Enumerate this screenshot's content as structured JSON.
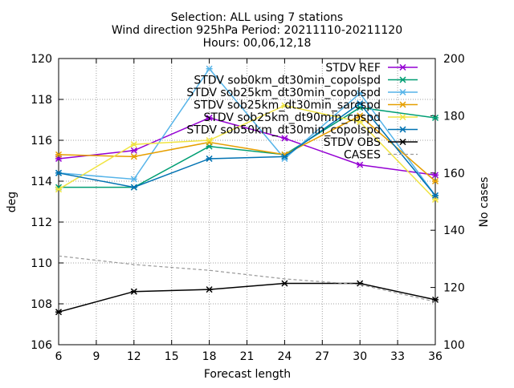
{
  "chart_data": {
    "type": "line",
    "title": [
      "Selection: ALL using      7 stations",
      "Wind direction 925hPa   Period: 20211110-20211120",
      "Hours: 00,06,12,18"
    ],
    "xlabel": "Forecast length",
    "ylabel": "deg",
    "y2label": "No cases",
    "x": [
      6,
      12,
      18,
      24,
      30,
      36
    ],
    "xticks": [
      6,
      9,
      12,
      15,
      18,
      21,
      24,
      27,
      30,
      33,
      36
    ],
    "xlim": [
      6,
      36
    ],
    "ylim": [
      106,
      120
    ],
    "yticks": [
      106,
      108,
      110,
      112,
      114,
      116,
      118,
      120
    ],
    "y2lim": [
      100,
      200
    ],
    "y2ticks": [
      100,
      120,
      140,
      160,
      180,
      200
    ],
    "grid": true,
    "legend_position": "top-right",
    "series": [
      {
        "name": "STDV REF",
        "color": "#9400d3",
        "dash": "",
        "values": [
          115.1,
          115.5,
          117.1,
          116.1,
          114.8,
          114.3
        ]
      },
      {
        "name": "STDV sob0km_dt30min_copolspd",
        "color": "#009e73",
        "dash": "",
        "values": [
          113.7,
          113.7,
          115.7,
          115.3,
          117.6,
          117.1
        ]
      },
      {
        "name": "STDV sob25km_dt30min_copolspd",
        "color": "#56b4e9",
        "dash": "",
        "values": [
          114.4,
          114.1,
          119.5,
          115.1,
          118.3,
          113.3
        ]
      },
      {
        "name": "STDV sob25km_dt30min_sarcspd",
        "color": "#e69f00",
        "dash": "",
        "values": [
          115.3,
          115.2,
          115.9,
          115.3,
          117.2,
          114.0
        ]
      },
      {
        "name": "STDV sob25km_dt90min_cpspd",
        "color": "#f0e442",
        "dash": "",
        "values": [
          113.6,
          115.8,
          116.0,
          117.7,
          116.9,
          113.1
        ]
      },
      {
        "name": "STDV sob50km_dt30min_copolspd",
        "color": "#0072b2",
        "dash": "",
        "values": [
          114.4,
          113.7,
          115.1,
          115.2,
          117.8,
          113.3
        ]
      },
      {
        "name": "STDV OBS",
        "color": "#000000",
        "dash": "",
        "values": [
          107.6,
          108.6,
          108.7,
          109.0,
          109.0,
          108.2
        ]
      },
      {
        "name": "CASES",
        "color": "#999999",
        "dash": "4,3",
        "axis": "y2",
        "noMarker": true,
        "values": [
          131,
          128,
          126,
          123,
          121,
          115
        ]
      }
    ]
  }
}
